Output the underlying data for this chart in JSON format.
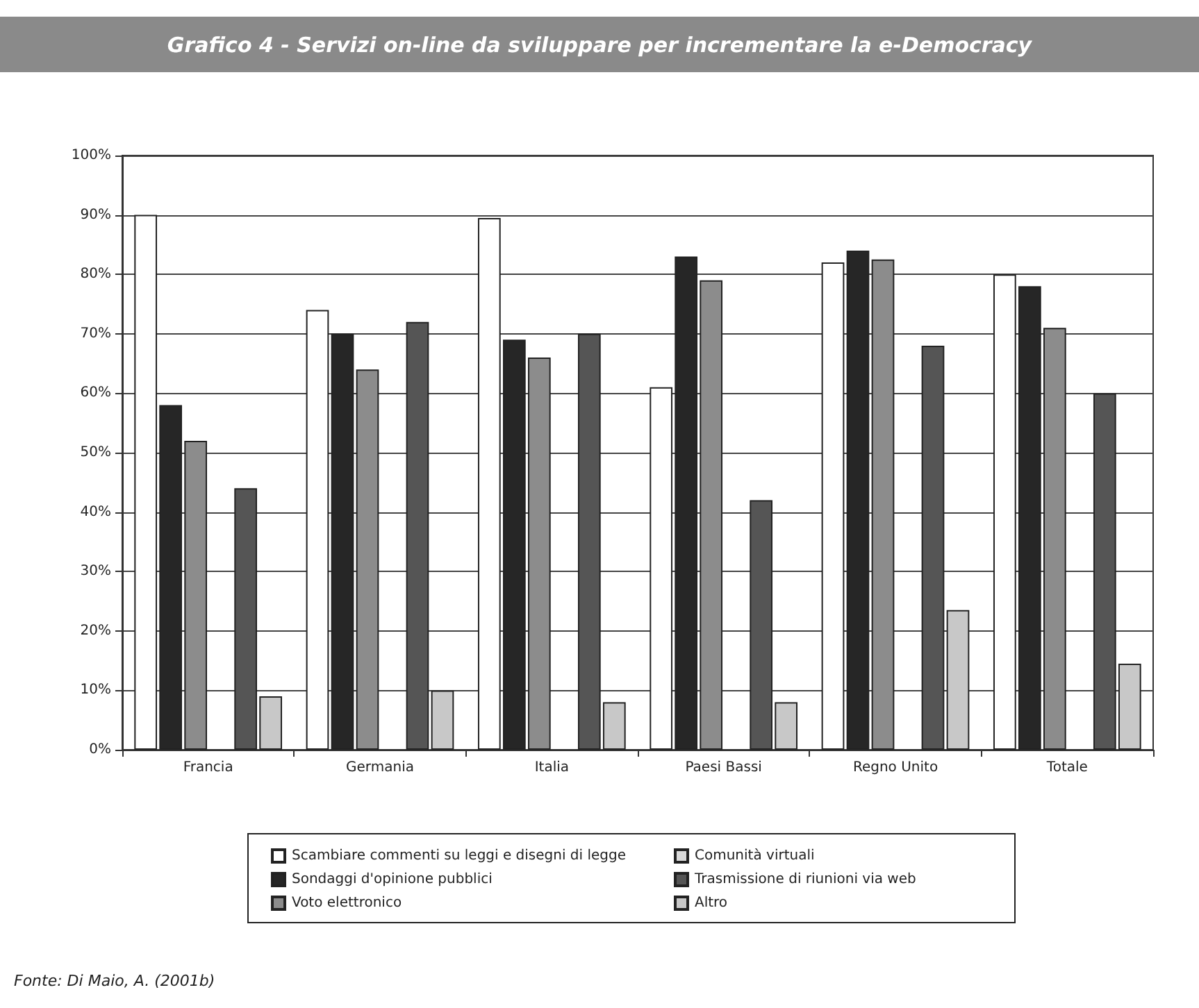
{
  "chart_data": {
    "type": "bar",
    "title": "Grafico 4 - Servizi on-line da sviluppare per incrementare la e-Democracy",
    "categories": [
      "Francia",
      "Germania",
      "Italia",
      "Paesi Bassi",
      "Regno Unito",
      "Totale"
    ],
    "series": [
      {
        "name": "Scambiare commenti su leggi e disegni di legge",
        "color": "#ffffff",
        "values": [
          90,
          74,
          89.5,
          61,
          82,
          80
        ]
      },
      {
        "name": "Sondaggi d'opinione pubblici",
        "color": "#262626",
        "values": [
          58,
          70,
          69,
          83,
          84,
          78
        ]
      },
      {
        "name": "Voto elettronico",
        "color": "#8c8c8c",
        "values": [
          52,
          64,
          66,
          79,
          82.5,
          71
        ]
      },
      {
        "name": "Comunità virtuali",
        "color": "#d9d9d9",
        "values": [
          null,
          null,
          null,
          null,
          null,
          null
        ]
      },
      {
        "name": "Trasmissione di riunioni via web",
        "color": "#555555",
        "values": [
          44,
          72,
          70,
          42,
          68,
          60
        ]
      },
      {
        "name": "Altro",
        "color": "#c8c8c8",
        "values": [
          9,
          10,
          8,
          8,
          23.5,
          14.5
        ]
      }
    ],
    "ylim": [
      0,
      100
    ],
    "yticks": [
      {
        "value": 0,
        "label": "0%"
      },
      {
        "value": 10,
        "label": "10%"
      },
      {
        "value": 20,
        "label": "20%"
      },
      {
        "value": 30,
        "label": "30%"
      },
      {
        "value": 40,
        "label": "40%"
      },
      {
        "value": 50,
        "label": "50%"
      },
      {
        "value": 60,
        "label": "60%"
      },
      {
        "value": 70,
        "label": "70%"
      },
      {
        "value": 80,
        "label": "80%"
      },
      {
        "value": 90,
        "label": "90%"
      },
      {
        "value": 100,
        "label": "100%"
      }
    ],
    "grid": "y",
    "legend": "bottom",
    "annotations": [
      "Fonte: Di Maio, A. (2001b)"
    ]
  }
}
